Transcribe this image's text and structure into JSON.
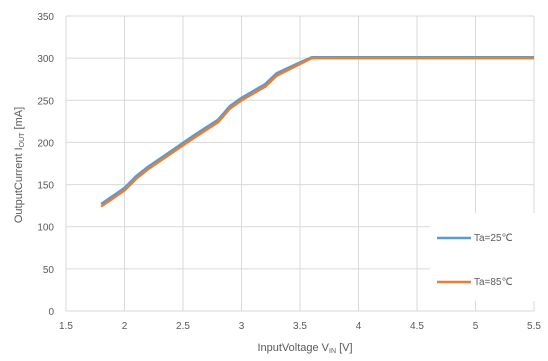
{
  "chart_data": {
    "type": "line",
    "xlabel": {
      "main": "InputVoltage V",
      "sub": "IN",
      "unit": " [V]"
    },
    "ylabel": {
      "main": "OutputCurrent I",
      "sub": "OUT",
      "unit": " [mA]"
    },
    "xlim": [
      1.5,
      5.5
    ],
    "ylim": [
      0,
      350
    ],
    "xticks": [
      "1.5",
      "2",
      "2.5",
      "3",
      "3.5",
      "4",
      "4.5",
      "5",
      "5.5"
    ],
    "yticks": [
      "0",
      "50",
      "100",
      "150",
      "200",
      "250",
      "300",
      "350"
    ],
    "grid": true,
    "legend_position": "bottom-right",
    "series": [
      {
        "name": "Ta=25℃",
        "color": "#5B9BD5",
        "x": [
          1.8,
          2.0,
          2.1,
          2.2,
          2.4,
          2.6,
          2.8,
          2.9,
          3.0,
          3.2,
          3.3,
          3.5,
          3.6,
          3.7,
          4.0,
          4.5,
          5.0,
          5.5
        ],
        "y": [
          127,
          146,
          160,
          171,
          190,
          209,
          227,
          243,
          253,
          269,
          282,
          295,
          301,
          301,
          301,
          301,
          301,
          301
        ]
      },
      {
        "name": "Ta=85℃",
        "color": "#ED7D31",
        "x": [
          1.8,
          2.0,
          2.1,
          2.2,
          2.4,
          2.6,
          2.8,
          2.9,
          3.0,
          3.2,
          3.3,
          3.5,
          3.6,
          3.7,
          4.0,
          4.5,
          5.0,
          5.5
        ],
        "y": [
          124,
          143,
          157,
          168,
          187,
          206,
          224,
          240,
          250,
          266,
          279,
          293,
          300,
          300,
          300,
          300,
          300,
          300
        ]
      }
    ]
  }
}
